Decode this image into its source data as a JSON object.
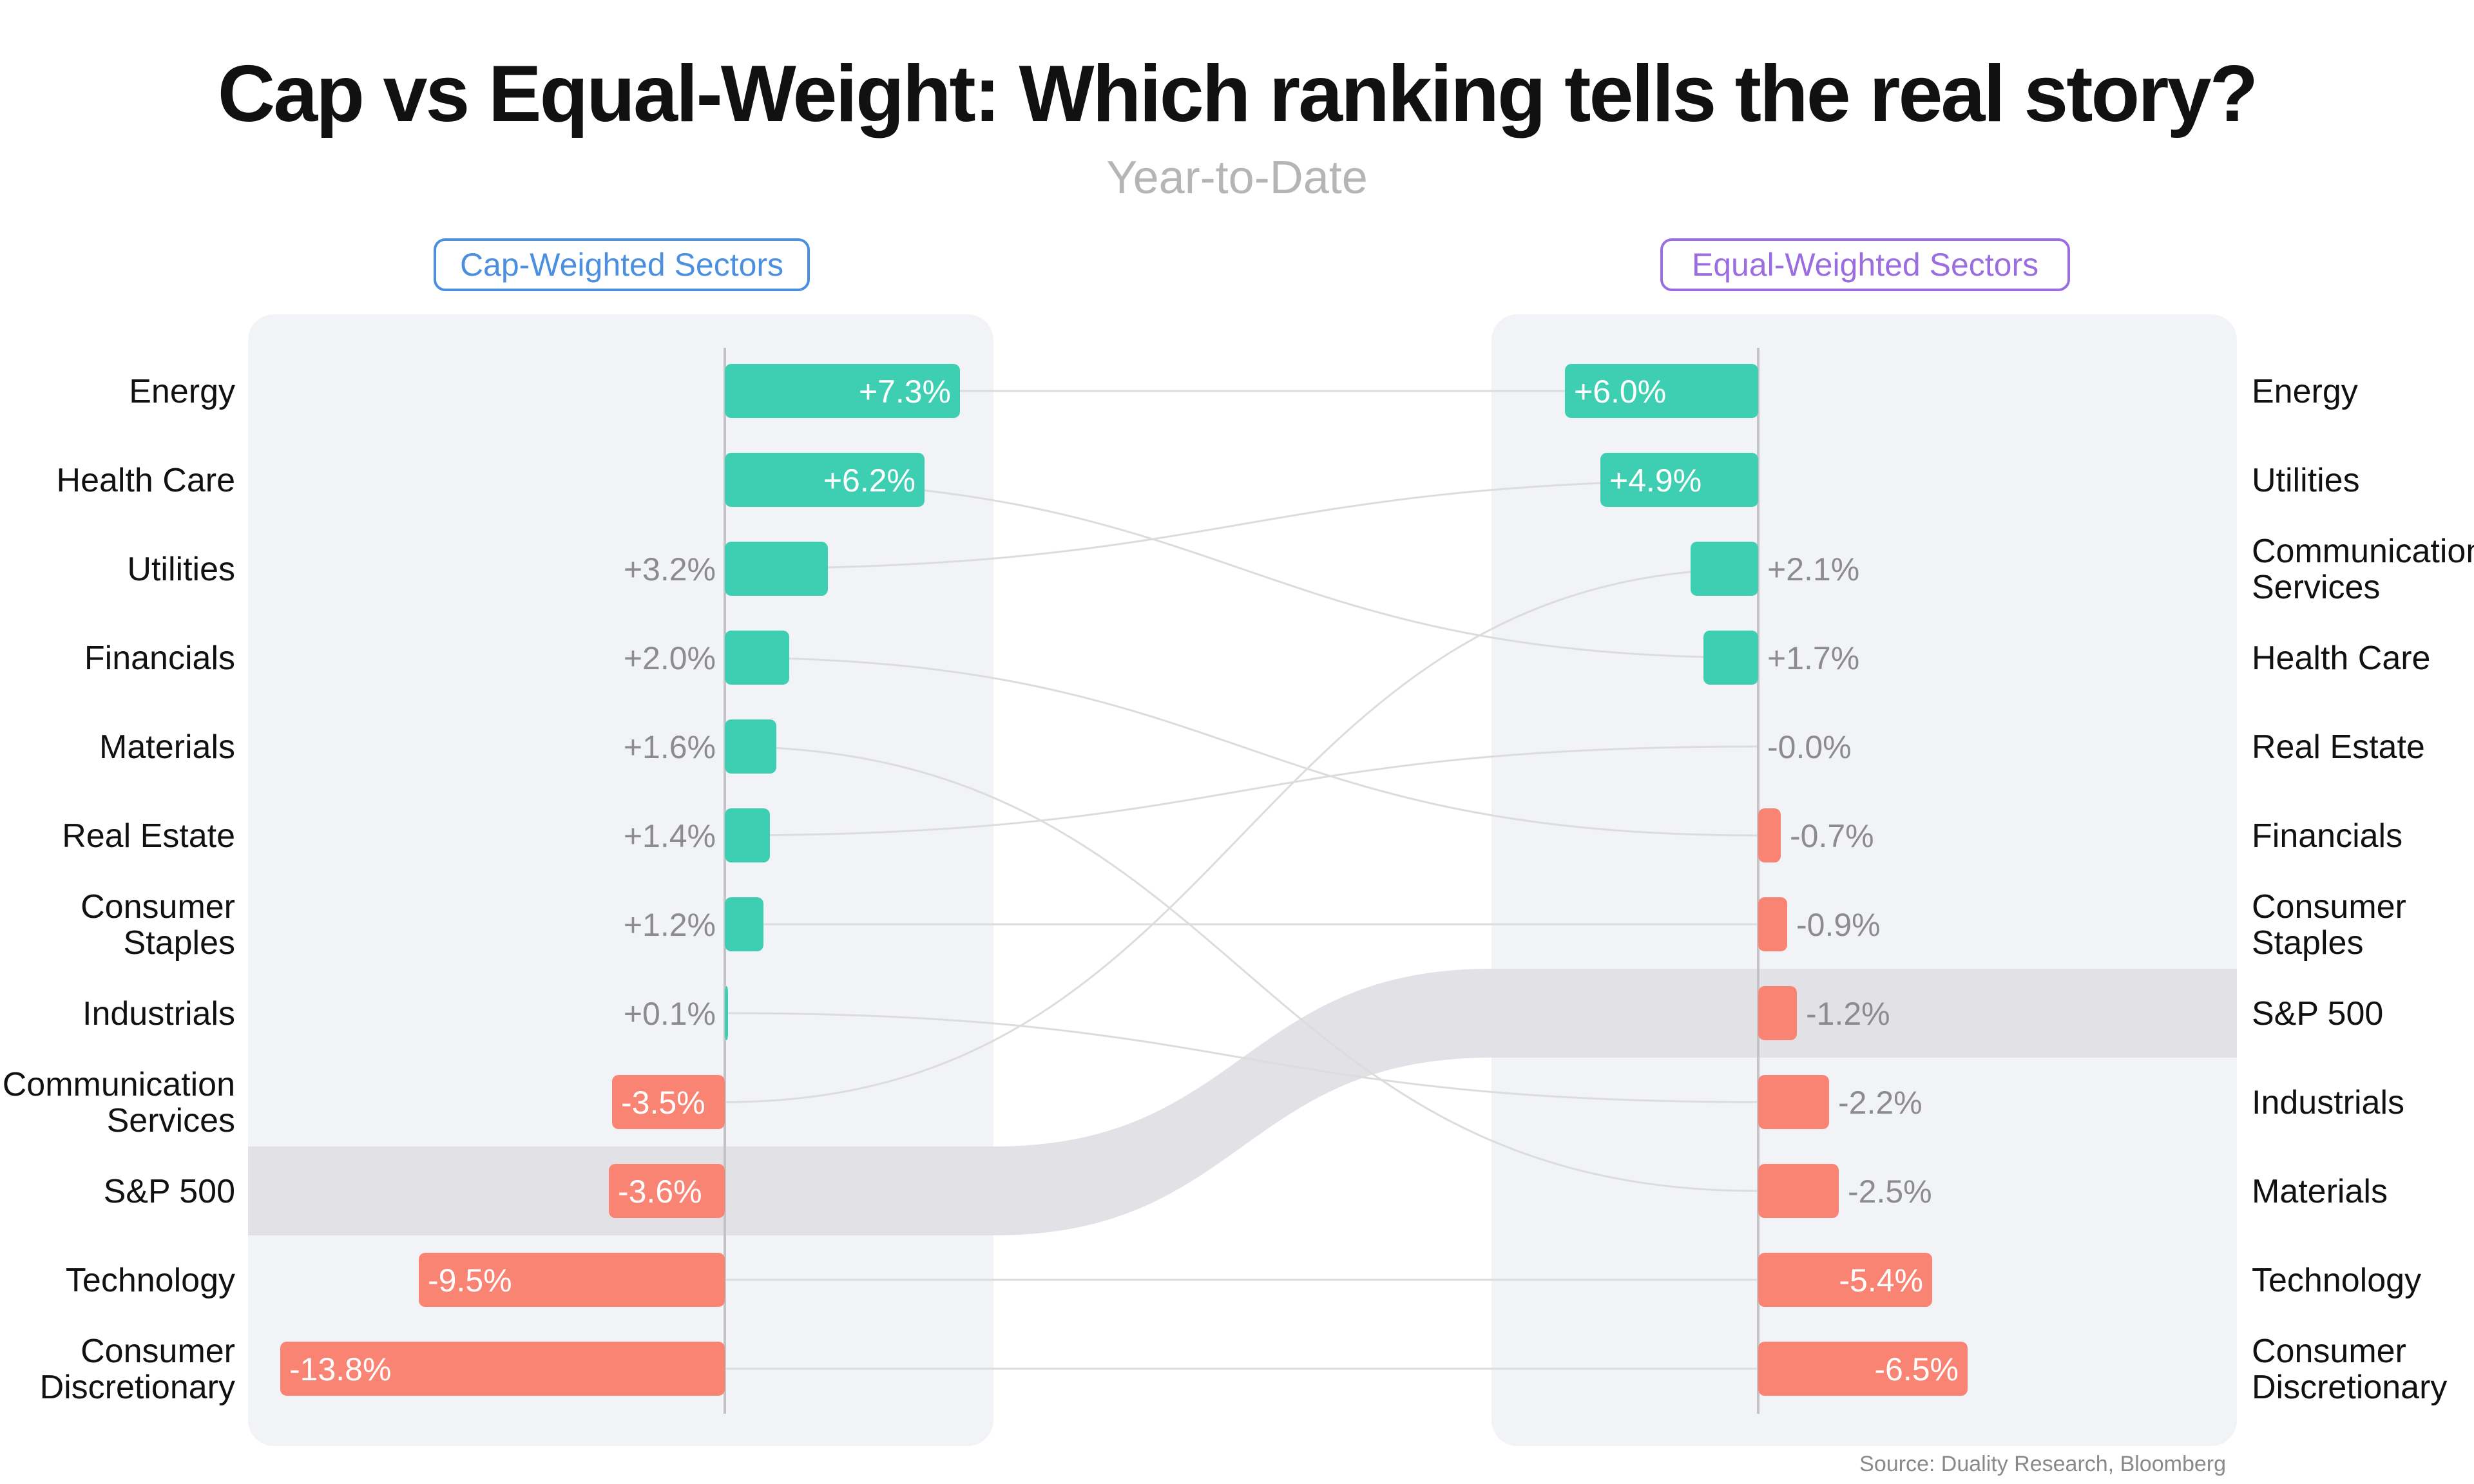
{
  "chart_data": {
    "type": "bar",
    "title": "Cap vs Equal-Weight: Which ranking tells the real story?",
    "subtitle": "Year-to-Date",
    "source": "Source: Duality Research, Bloomberg",
    "highlight": "S&P 500",
    "colors": {
      "positive": "#3ecfb2",
      "negative": "#fa8474",
      "benchmark_band": "#e2e2e6",
      "panel": "#f2f3f7",
      "left_badge": "#4a8fe0",
      "right_badge": "#9a6de0"
    },
    "panels": [
      {
        "name": "Cap-Weighted Sectors",
        "categories": [
          [
            "Energy"
          ],
          [
            "Health Care"
          ],
          [
            "Utilities"
          ],
          [
            "Financials"
          ],
          [
            "Materials"
          ],
          [
            "Real Estate"
          ],
          [
            "Consumer",
            "Staples"
          ],
          [
            "Industrials"
          ],
          [
            "Communication",
            "Services"
          ],
          [
            "S&P 500"
          ],
          [
            "Technology"
          ],
          [
            "Consumer",
            "Discretionary"
          ]
        ],
        "values": [
          7.3,
          6.2,
          3.2,
          2.0,
          1.6,
          1.4,
          1.2,
          0.1,
          -3.5,
          -3.6,
          -9.5,
          -13.8
        ],
        "value_labels": [
          "+7.3%",
          "+6.2%",
          "+3.2%",
          "+2.0%",
          "+1.6%",
          "+1.4%",
          "+1.2%",
          "+0.1%",
          "-3.5%",
          "-3.6%",
          "-9.5%",
          "-13.8%"
        ]
      },
      {
        "name": "Equal-Weighted Sectors",
        "categories": [
          [
            "Energy"
          ],
          [
            "Utilities"
          ],
          [
            "Communication",
            "Services"
          ],
          [
            "Health Care"
          ],
          [
            "Real Estate"
          ],
          [
            "Financials"
          ],
          [
            "Consumer",
            "Staples"
          ],
          [
            "S&P 500"
          ],
          [
            "Industrials"
          ],
          [
            "Materials"
          ],
          [
            "Technology"
          ],
          [
            "Consumer",
            "Discretionary"
          ]
        ],
        "values": [
          6.0,
          4.9,
          2.1,
          1.7,
          0.0,
          -0.7,
          -0.9,
          -1.2,
          -2.2,
          -2.5,
          -5.4,
          -6.5
        ],
        "value_labels": [
          "+6.0%",
          "+4.9%",
          "+2.1%",
          "+1.7%",
          "-0.0%",
          "-0.7%",
          "-0.9%",
          "-1.2%",
          "-2.2%",
          "-2.5%",
          "-5.4%",
          "-6.5%"
        ]
      }
    ]
  }
}
